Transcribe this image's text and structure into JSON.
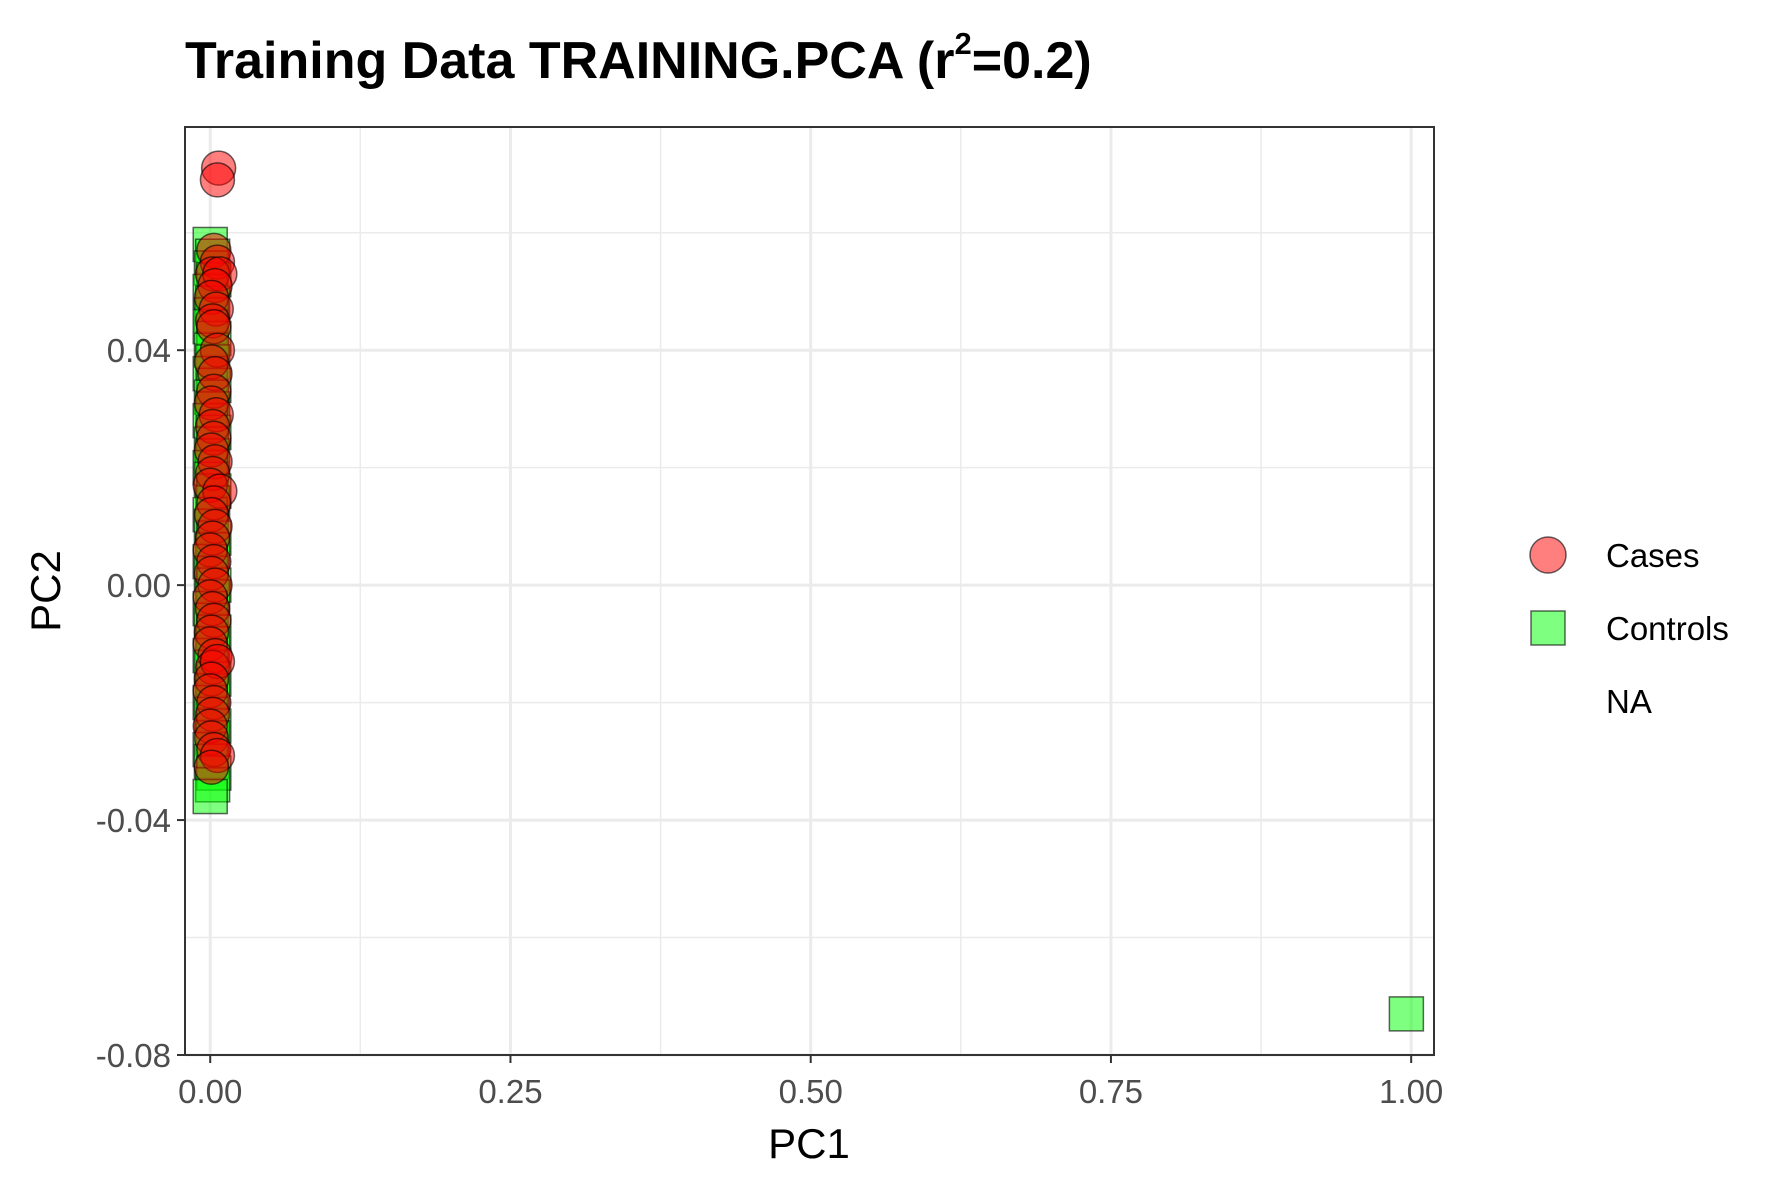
{
  "title": {
    "prefix": "Training Data TRAINING.PCA (r",
    "superscript": "2",
    "suffix": "=0.2)"
  },
  "chart_data": {
    "type": "scatter",
    "xlabel": "PC1",
    "ylabel": "PC2",
    "xlim": [
      -0.021,
      1.019
    ],
    "ylim": [
      -0.08,
      0.078
    ],
    "x_ticks": [
      0.0,
      0.25,
      0.5,
      0.75,
      1.0
    ],
    "x_tick_labels": [
      "0.00",
      "0.25",
      "0.50",
      "0.75",
      "1.00"
    ],
    "y_ticks": [
      -0.08,
      -0.04,
      0.0,
      0.04
    ],
    "y_tick_labels": [
      "-0.08",
      "-0.04",
      "0.00",
      "0.04"
    ],
    "grid": true,
    "legend_position": "right",
    "legend": [
      {
        "label": "Cases",
        "shape": "circle",
        "color": "#ff0000"
      },
      {
        "label": "Controls",
        "shape": "square",
        "color": "#00ff00"
      },
      {
        "label": "NA",
        "shape": "none",
        "color": ""
      }
    ],
    "series": [
      {
        "name": "Controls",
        "shape": "square",
        "color": "#00ff00",
        "points": [
          [
            0.0,
            0.058
          ],
          [
            0.002,
            0.056
          ],
          [
            0.001,
            0.054
          ],
          [
            0.003,
            0.052
          ],
          [
            0.0,
            0.05
          ],
          [
            0.002,
            0.048
          ],
          [
            0.001,
            0.046
          ],
          [
            0.0,
            0.044
          ],
          [
            0.003,
            0.042
          ],
          [
            0.001,
            0.04
          ],
          [
            0.002,
            0.038
          ],
          [
            0.0,
            0.036
          ],
          [
            0.003,
            0.034
          ],
          [
            0.001,
            0.032
          ],
          [
            0.002,
            0.03
          ],
          [
            0.0,
            0.028
          ],
          [
            0.003,
            0.026
          ],
          [
            0.001,
            0.024
          ],
          [
            0.002,
            0.022
          ],
          [
            0.0,
            0.02
          ],
          [
            0.001,
            0.018
          ],
          [
            0.003,
            0.016
          ],
          [
            0.002,
            0.014
          ],
          [
            0.0,
            0.012
          ],
          [
            0.001,
            0.01
          ],
          [
            0.003,
            0.008
          ],
          [
            0.002,
            0.006
          ],
          [
            0.0,
            0.004
          ],
          [
            0.001,
            0.002
          ],
          [
            0.003,
            0.0
          ],
          [
            0.002,
            -0.002
          ],
          [
            0.0,
            -0.004
          ],
          [
            0.001,
            -0.006
          ],
          [
            0.003,
            -0.008
          ],
          [
            0.002,
            -0.01
          ],
          [
            0.0,
            -0.012
          ],
          [
            0.001,
            -0.014
          ],
          [
            0.003,
            -0.016
          ],
          [
            0.002,
            -0.018
          ],
          [
            0.0,
            -0.02
          ],
          [
            0.001,
            -0.022
          ],
          [
            0.003,
            -0.024
          ],
          [
            0.002,
            -0.026
          ],
          [
            0.0,
            -0.028
          ],
          [
            0.001,
            -0.03
          ],
          [
            0.003,
            -0.032
          ],
          [
            0.002,
            -0.034
          ],
          [
            0.0,
            -0.036
          ],
          [
            0.996,
            -0.073
          ]
        ]
      },
      {
        "name": "Cases",
        "shape": "circle",
        "color": "#ff0000",
        "points": [
          [
            0.007,
            0.071
          ],
          [
            0.006,
            0.069
          ],
          [
            0.003,
            0.057
          ],
          [
            0.006,
            0.055
          ],
          [
            0.002,
            0.053
          ],
          [
            0.008,
            0.053
          ],
          [
            0.004,
            0.051
          ],
          [
            0.001,
            0.049
          ],
          [
            0.005,
            0.047
          ],
          [
            0.002,
            0.045
          ],
          [
            0.003,
            0.044
          ],
          [
            0.006,
            0.04
          ],
          [
            0.001,
            0.038
          ],
          [
            0.004,
            0.036
          ],
          [
            0.003,
            0.033
          ],
          [
            0.001,
            0.031
          ],
          [
            0.005,
            0.029
          ],
          [
            0.002,
            0.027
          ],
          [
            0.003,
            0.025
          ],
          [
            0.001,
            0.023
          ],
          [
            0.004,
            0.021
          ],
          [
            0.002,
            0.019
          ],
          [
            0.0,
            0.017
          ],
          [
            0.008,
            0.016
          ],
          [
            0.003,
            0.014
          ],
          [
            0.001,
            0.012
          ],
          [
            0.004,
            0.01
          ],
          [
            0.002,
            0.008
          ],
          [
            0.0,
            0.006
          ],
          [
            0.003,
            0.004
          ],
          [
            0.001,
            0.002
          ],
          [
            0.004,
            0.0
          ],
          [
            0.0,
            -0.002
          ],
          [
            0.002,
            -0.004
          ],
          [
            0.003,
            -0.006
          ],
          [
            0.001,
            -0.008
          ],
          [
            0.0,
            -0.01
          ],
          [
            0.004,
            -0.012
          ],
          [
            0.002,
            -0.014
          ],
          [
            0.006,
            -0.013
          ],
          [
            0.001,
            -0.016
          ],
          [
            0.0,
            -0.018
          ],
          [
            0.003,
            -0.02
          ],
          [
            0.002,
            -0.022
          ],
          [
            0.0,
            -0.024
          ],
          [
            0.001,
            -0.026
          ],
          [
            0.003,
            -0.028
          ],
          [
            0.006,
            -0.029
          ],
          [
            0.001,
            -0.031
          ]
        ]
      }
    ]
  }
}
